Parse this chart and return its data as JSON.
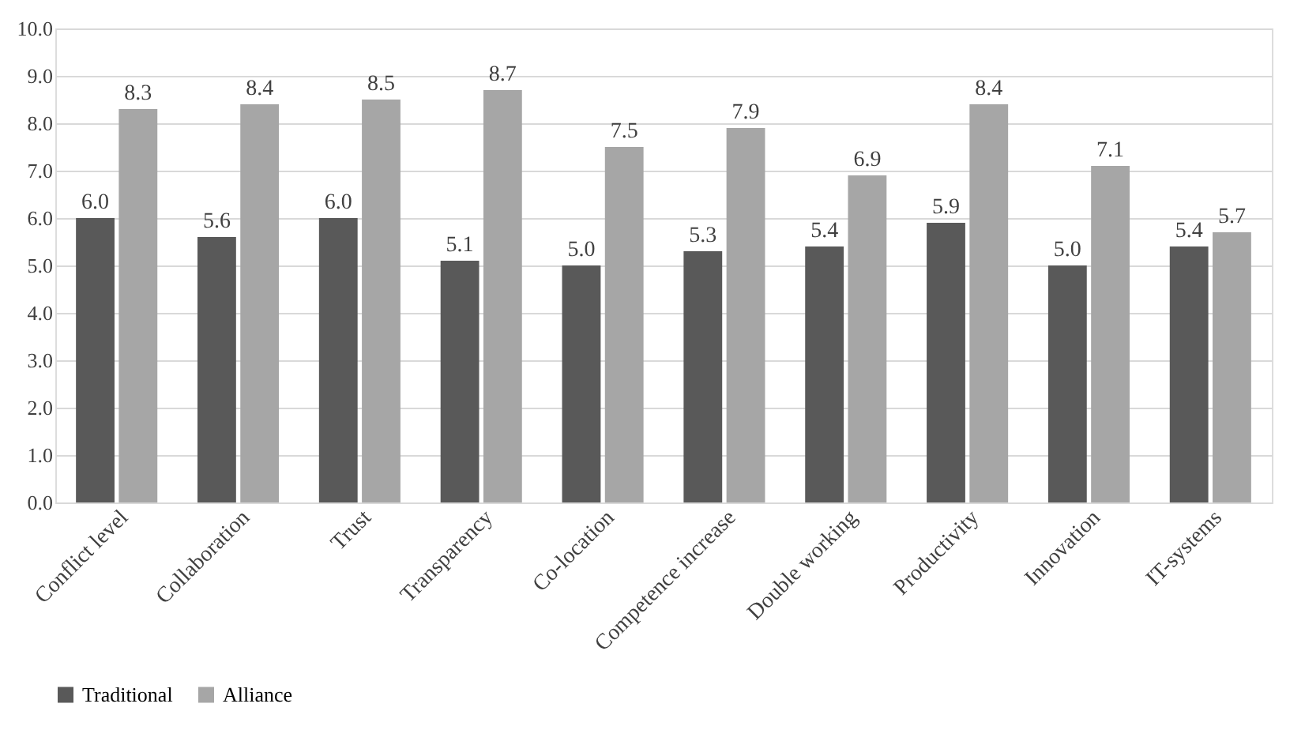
{
  "chart_data": {
    "type": "bar",
    "categories": [
      "Conflict level",
      "Collaboration",
      "Trust",
      "Transparency",
      "Co-location",
      "Competence increase",
      "Double working",
      "Productivity",
      "Innovation",
      "IT-systems"
    ],
    "series": [
      {
        "name": "Traditional",
        "color": "#595959",
        "values": [
          6.0,
          5.6,
          6.0,
          5.1,
          5.0,
          5.3,
          5.4,
          5.9,
          5.0,
          5.4
        ],
        "value_labels": [
          "6.0",
          "5.6",
          "6.0",
          "5.1",
          "5.0",
          "5.3",
          "5.4",
          "5.9",
          "5.0",
          "5.4"
        ]
      },
      {
        "name": "Alliance",
        "color": "#a6a6a6",
        "values": [
          8.3,
          8.4,
          8.5,
          8.7,
          7.5,
          7.9,
          6.9,
          8.4,
          7.1,
          5.7
        ],
        "value_labels": [
          "8.3",
          "8.4",
          "8.5",
          "8.7",
          "7.5",
          "7.9",
          "6.9",
          "8.4",
          "7.1",
          "5.7"
        ]
      }
    ],
    "ylim": [
      0,
      10
    ],
    "yticks": [
      {
        "value": 0,
        "label": "0.0"
      },
      {
        "value": 1,
        "label": "1.0"
      },
      {
        "value": 2,
        "label": "2.0"
      },
      {
        "value": 3,
        "label": "3.0"
      },
      {
        "value": 4,
        "label": "4.0"
      },
      {
        "value": 5,
        "label": "5.0"
      },
      {
        "value": 6,
        "label": "6.0"
      },
      {
        "value": 7,
        "label": "7.0"
      },
      {
        "value": 8,
        "label": "8.0"
      },
      {
        "value": 9,
        "label": "9.0"
      },
      {
        "value": 10,
        "label": "10.0"
      }
    ],
    "grid": "y",
    "legend": "bottom"
  }
}
